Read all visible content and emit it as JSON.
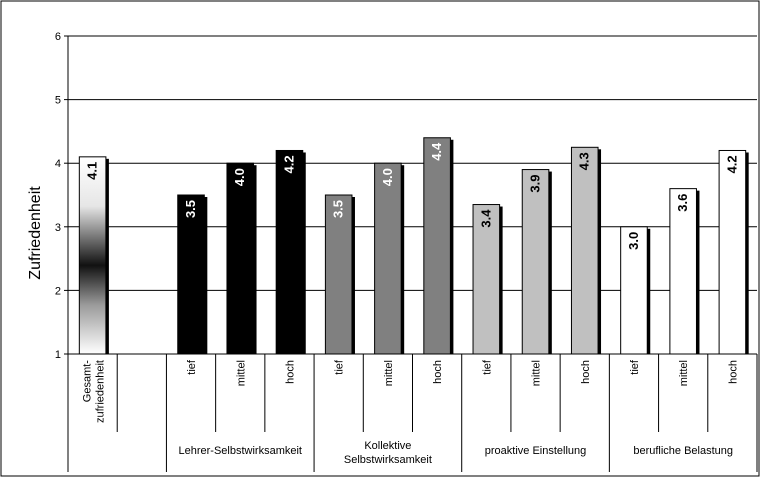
{
  "chart_data": {
    "type": "bar",
    "ylabel": "Zufriedenheit",
    "ylim": [
      1,
      6
    ],
    "yticks": [
      1,
      2,
      3,
      4,
      5,
      6
    ],
    "grid": true,
    "legend": "none",
    "groups": [
      {
        "label": "",
        "categories": [
          "Gesamt-\nzufriedenheit"
        ],
        "values": [
          4.1
        ],
        "labels": [
          "4.1"
        ],
        "fill": "gradient-white-black-white"
      },
      {
        "label": "Lehrer-Selbstwirksamkeit",
        "categories": [
          "tief",
          "mittel",
          "hoch"
        ],
        "values": [
          3.5,
          4.0,
          4.2
        ],
        "labels": [
          "3.5",
          "4.0",
          "4.2"
        ],
        "fill": "#000000"
      },
      {
        "label": "Kollektive\nSelbstwirksamkeit",
        "categories": [
          "tief",
          "mittel",
          "hoch"
        ],
        "values": [
          3.5,
          4.0,
          4.4
        ],
        "labels": [
          "3.5",
          "4.0",
          "4.4"
        ],
        "fill": "#808080"
      },
      {
        "label": "proaktive Einstellung",
        "categories": [
          "tief",
          "mittel",
          "hoch"
        ],
        "values": [
          3.35,
          3.9,
          4.25
        ],
        "labels": [
          "3.4",
          "3.9",
          "4.3"
        ],
        "fill": "#c0c0c0"
      },
      {
        "label": "berufliche Belastung",
        "categories": [
          "tief",
          "mittel",
          "hoch"
        ],
        "values": [
          3.0,
          3.6,
          4.2
        ],
        "labels": [
          "3.0",
          "3.6",
          "4.2"
        ],
        "fill": "#ffffff"
      }
    ]
  }
}
